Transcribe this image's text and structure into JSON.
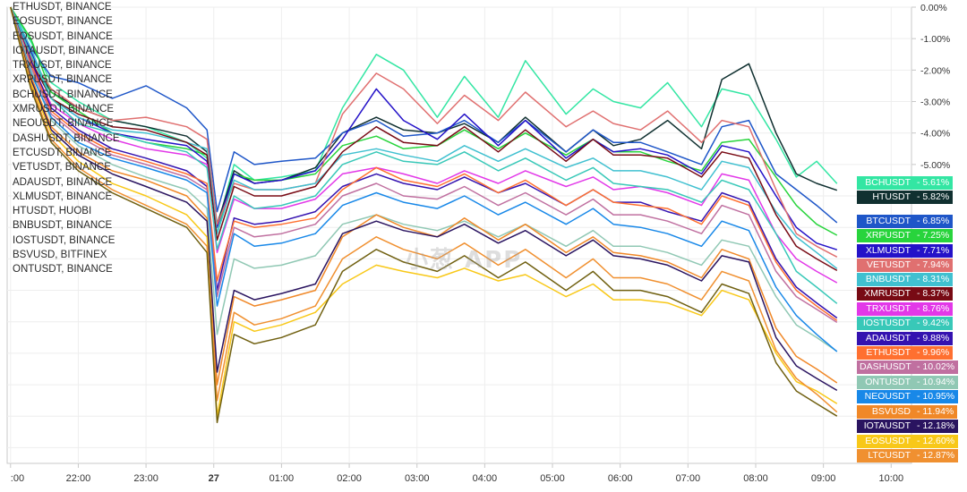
{
  "watermark": "小葱 APP",
  "colors": {
    "grid": "#eeeeee",
    "axis": "#c8c8c8",
    "text": "#333333"
  },
  "legend": [
    "ETHUSDT, BINANCE",
    "EOSUSDT, BINANCE",
    "EOSUSDT, BINANCE",
    "IOTAUSDT, BINANCE",
    "TRXUSDT, BINANCE",
    "XRPUSDT, BINANCE",
    "BCHUSDT, BINANCE",
    "XMRUSDT, BINANCE",
    "NEOUSDT, BINANCE",
    "DASHUSDT, BINANCE",
    "ETCUSDT, BINANCE",
    "VETUSDT, BINANCE",
    "ADAUSDT, BINANCE",
    "XLMUSDT, BINANCE",
    "HTUSDT, HUOBI",
    "BNBUSDT, BINANCE",
    "IOSTUSDT, BINANCE",
    "BSVUSD, BITFINEX",
    "ONTUSDT, BINANCE"
  ],
  "chart_data": {
    "type": "line",
    "x_ticks": [
      ":00",
      "22:00",
      "23:00",
      "27",
      "01:00",
      "02:00",
      "03:00",
      "04:00",
      "05:00",
      "06:00",
      "07:00",
      "08:00",
      "09:00",
      "10:00"
    ],
    "y_ticks": [
      "0.00%",
      "-1.00%",
      "-2.00%",
      "-3.00%",
      "-4.00%",
      "-5.00%"
    ],
    "ylim": [
      -14.5,
      0
    ],
    "xlim": [
      -0.05,
      13.3
    ],
    "anchor_x": [
      0,
      0.3,
      0.6,
      1.0,
      1.5,
      2.0,
      2.6,
      2.9,
      3.05,
      3.3,
      3.6,
      4.0,
      4.5,
      4.9,
      5.4,
      5.8,
      6.3,
      6.7,
      7.2,
      7.6,
      8.2,
      8.6,
      8.9,
      9.3,
      9.7,
      10.2,
      10.5,
      10.9,
      11.3,
      11.6,
      11.9,
      12.2
    ],
    "series": [
      {
        "name": "BCHUSDT",
        "color": "#33e6a3",
        "final": "-5.61%",
        "values": [
          0.0,
          -1.1,
          -2.4,
          -3.0,
          -3.6,
          -3.8,
          -4.3,
          -4.8,
          -7.0,
          -5.0,
          -5.5,
          -5.4,
          -5.2,
          -3.2,
          -1.5,
          -2.0,
          -3.5,
          -2.2,
          -3.5,
          -1.7,
          -3.4,
          -2.6,
          -3.0,
          -3.2,
          -2.4,
          -3.8,
          -2.6,
          -2.8,
          -4.2,
          -5.4,
          -4.9,
          -5.61
        ]
      },
      {
        "name": "HTUSDT",
        "color": "#103030",
        "final": "-5.82%",
        "values": [
          0.0,
          -1.6,
          -2.7,
          -3.2,
          -3.6,
          -3.8,
          -4.1,
          -4.6,
          -6.9,
          -5.2,
          -5.6,
          -5.5,
          -5.1,
          -4.0,
          -3.5,
          -3.9,
          -4.0,
          -3.7,
          -4.3,
          -3.5,
          -4.6,
          -3.9,
          -4.4,
          -4.2,
          -3.6,
          -4.5,
          -2.3,
          -1.8,
          -4.0,
          -5.3,
          -5.6,
          -5.82
        ]
      },
      {
        "name": "BTCUSDT",
        "color": "#1e56c8",
        "final": "-6.85%",
        "values": [
          0.0,
          -1.3,
          -2.2,
          -2.4,
          -2.9,
          -2.5,
          -3.2,
          -3.9,
          -6.5,
          -4.6,
          -5.0,
          -4.9,
          -4.8,
          -4.0,
          -3.6,
          -4.1,
          -4.0,
          -3.6,
          -4.3,
          -3.6,
          -4.6,
          -3.9,
          -4.3,
          -4.3,
          -4.6,
          -5.0,
          -3.8,
          -3.6,
          -5.3,
          -5.8,
          -6.3,
          -6.85
        ]
      },
      {
        "name": "XRPUSDT",
        "color": "#28d43c",
        "final": "-7.25%",
        "values": [
          0.0,
          -1.0,
          -2.7,
          -3.3,
          -4.0,
          -4.3,
          -4.5,
          -4.7,
          -7.2,
          -5.3,
          -5.5,
          -5.5,
          -5.3,
          -4.4,
          -4.1,
          -4.5,
          -4.4,
          -3.9,
          -4.5,
          -4.0,
          -4.7,
          -4.2,
          -4.6,
          -4.6,
          -4.9,
          -5.2,
          -4.3,
          -4.2,
          -5.4,
          -6.3,
          -6.9,
          -7.25
        ]
      },
      {
        "name": "XLMUSDT",
        "color": "#2412c8",
        "final": "-7.71%",
        "values": [
          0.0,
          -1.4,
          -2.9,
          -3.5,
          -4.0,
          -4.2,
          -4.4,
          -4.9,
          -7.0,
          -5.3,
          -5.6,
          -5.5,
          -5.2,
          -4.2,
          -2.6,
          -3.6,
          -4.2,
          -3.4,
          -4.4,
          -3.6,
          -4.8,
          -4.2,
          -4.6,
          -4.5,
          -4.7,
          -5.3,
          -4.4,
          -4.6,
          -6.0,
          -7.0,
          -7.5,
          -7.71
        ]
      },
      {
        "name": "VETUSDT",
        "color": "#e07070",
        "final": "-7.94%",
        "values": [
          0.0,
          -1.6,
          -2.6,
          -3.2,
          -3.6,
          -3.5,
          -3.8,
          -4.2,
          -6.9,
          -5.6,
          -5.8,
          -5.8,
          -5.6,
          -3.4,
          -2.1,
          -2.6,
          -3.7,
          -2.8,
          -3.6,
          -2.7,
          -3.8,
          -3.3,
          -3.7,
          -3.9,
          -3.3,
          -4.3,
          -3.6,
          -3.8,
          -5.8,
          -7.2,
          -7.6,
          -7.94
        ]
      },
      {
        "name": "BNBUSDT",
        "color": "#40c0d0",
        "final": "-8.31%",
        "values": [
          0.0,
          -1.3,
          -2.9,
          -3.5,
          -3.9,
          -4.0,
          -4.3,
          -4.5,
          -7.2,
          -5.5,
          -5.8,
          -5.8,
          -5.6,
          -4.7,
          -4.5,
          -4.7,
          -4.9,
          -4.4,
          -4.9,
          -4.5,
          -5.1,
          -4.8,
          -5.2,
          -5.2,
          -5.4,
          -5.8,
          -4.9,
          -5.1,
          -6.5,
          -7.3,
          -7.8,
          -8.31
        ]
      },
      {
        "name": "XMRUSDT",
        "color": "#780a14",
        "final": "-8.37%",
        "values": [
          0.0,
          -1.7,
          -2.9,
          -3.4,
          -3.8,
          -3.9,
          -4.3,
          -4.7,
          -7.4,
          -5.7,
          -6.0,
          -6.0,
          -5.7,
          -4.6,
          -3.8,
          -4.3,
          -4.4,
          -3.8,
          -4.6,
          -3.9,
          -4.9,
          -4.2,
          -4.7,
          -4.7,
          -4.8,
          -5.4,
          -4.6,
          -4.8,
          -6.6,
          -7.6,
          -8.0,
          -8.37
        ]
      },
      {
        "name": "TRXUSDT",
        "color": "#e238e8",
        "final": "-8.76%",
        "values": [
          0.0,
          -1.8,
          -3.1,
          -3.7,
          -4.2,
          -4.5,
          -4.7,
          -5.0,
          -7.8,
          -6.1,
          -6.4,
          -6.4,
          -6.1,
          -5.3,
          -5.1,
          -5.3,
          -5.6,
          -5.2,
          -5.6,
          -5.2,
          -5.7,
          -5.4,
          -5.8,
          -5.7,
          -5.9,
          -6.3,
          -5.3,
          -5.5,
          -7.2,
          -8.0,
          -8.4,
          -8.76
        ]
      },
      {
        "name": "IOSTUSDT",
        "color": "#38c8b8",
        "final": "-9.42%",
        "values": [
          0.0,
          -1.5,
          -2.9,
          -3.7,
          -4.0,
          -4.3,
          -4.6,
          -5.1,
          -7.7,
          -6.0,
          -6.4,
          -6.3,
          -6.0,
          -5.0,
          -4.6,
          -4.9,
          -5.0,
          -4.6,
          -5.2,
          -4.8,
          -5.5,
          -5.1,
          -5.6,
          -5.7,
          -5.8,
          -6.2,
          -5.5,
          -5.8,
          -7.2,
          -8.4,
          -8.9,
          -9.42
        ]
      },
      {
        "name": "ADAUSDT",
        "color": "#3412b0",
        "final": "-9.88%",
        "values": [
          0.0,
          -1.7,
          -3.2,
          -3.9,
          -4.5,
          -4.8,
          -5.2,
          -5.7,
          -9.0,
          -6.7,
          -6.9,
          -6.8,
          -6.5,
          -5.7,
          -5.3,
          -5.6,
          -5.8,
          -5.4,
          -5.9,
          -5.6,
          -6.3,
          -5.8,
          -6.2,
          -6.2,
          -6.5,
          -6.8,
          -5.9,
          -6.2,
          -8.0,
          -8.9,
          -9.4,
          -9.88
        ]
      },
      {
        "name": "ETHUSDT",
        "color": "#ff7030",
        "final": "-9.96%",
        "values": [
          0.0,
          -1.8,
          -3.3,
          -4.0,
          -4.6,
          -4.9,
          -5.3,
          -5.6,
          -8.7,
          -6.8,
          -7.0,
          -6.9,
          -6.7,
          -5.8,
          -5.1,
          -5.5,
          -5.7,
          -5.3,
          -5.9,
          -5.5,
          -6.3,
          -5.8,
          -6.2,
          -6.3,
          -6.4,
          -6.9,
          -6.0,
          -6.3,
          -8.1,
          -9.0,
          -9.5,
          -9.96
        ]
      },
      {
        "name": "DASHUSDT",
        "color": "#c070a0",
        "final": "-10.02%",
        "values": [
          0.0,
          -1.9,
          -3.4,
          -4.1,
          -4.7,
          -5.0,
          -5.4,
          -5.8,
          -9.2,
          -7.0,
          -7.3,
          -7.2,
          -6.9,
          -6.0,
          -5.6,
          -6.0,
          -6.1,
          -5.7,
          -6.3,
          -5.9,
          -6.6,
          -6.1,
          -6.6,
          -6.6,
          -6.8,
          -7.2,
          -6.3,
          -6.6,
          -8.4,
          -9.2,
          -9.6,
          -10.02
        ]
      },
      {
        "name": "ONTUSDT",
        "color": "#90c8b4",
        "final": "-10.94%",
        "values": [
          0.0,
          -2.0,
          -3.6,
          -4.4,
          -5.0,
          -5.4,
          -5.8,
          -6.4,
          -10.4,
          -8.0,
          -8.3,
          -8.2,
          -7.9,
          -6.9,
          -6.6,
          -6.9,
          -7.1,
          -6.8,
          -7.3,
          -6.9,
          -7.6,
          -7.1,
          -7.6,
          -7.6,
          -7.8,
          -8.2,
          -7.4,
          -7.6,
          -9.2,
          -10.1,
          -10.5,
          -10.94
        ]
      },
      {
        "name": "NEOUSDT",
        "color": "#1888e8",
        "final": "-10.95%",
        "values": [
          0.0,
          -2.1,
          -3.5,
          -4.3,
          -4.8,
          -5.1,
          -5.5,
          -5.9,
          -9.5,
          -7.2,
          -7.6,
          -7.5,
          -7.2,
          -6.3,
          -5.9,
          -6.2,
          -6.4,
          -6.0,
          -6.6,
          -6.2,
          -6.9,
          -6.4,
          -6.9,
          -7.0,
          -7.2,
          -7.6,
          -6.8,
          -7.1,
          -8.9,
          -9.8,
          -10.4,
          -10.95
        ]
      },
      {
        "name": "BSVUSD",
        "color": "#f08828",
        "final": "-11.94%",
        "values": [
          0.0,
          -2.2,
          -3.8,
          -4.6,
          -5.2,
          -5.5,
          -6.0,
          -6.7,
          -12.0,
          -9.2,
          -9.5,
          -9.3,
          -9.0,
          -7.3,
          -6.6,
          -7.0,
          -7.3,
          -6.7,
          -7.4,
          -6.9,
          -7.8,
          -7.3,
          -7.8,
          -7.9,
          -8.1,
          -8.6,
          -7.7,
          -8.0,
          -10.2,
          -11.1,
          -11.5,
          -11.94
        ]
      },
      {
        "name": "IOTAUSDT",
        "color": "#2a1460",
        "final": "-12.18%",
        "values": [
          0.0,
          -2.3,
          -3.9,
          -4.7,
          -5.3,
          -5.7,
          -6.2,
          -6.8,
          -11.6,
          -9.0,
          -9.3,
          -9.1,
          -8.8,
          -7.2,
          -6.8,
          -7.1,
          -7.3,
          -6.9,
          -7.5,
          -7.1,
          -7.9,
          -7.4,
          -7.9,
          -8.0,
          -8.2,
          -8.7,
          -7.9,
          -8.1,
          -10.5,
          -11.4,
          -11.8,
          -12.18
        ]
      },
      {
        "name": "EOSUSDT",
        "color": "#f8c818",
        "final": "-12.60%",
        "values": [
          0.0,
          -2.4,
          -4.0,
          -4.9,
          -5.6,
          -6.0,
          -6.6,
          -7.3,
          -13.0,
          -10.0,
          -10.3,
          -10.1,
          -9.7,
          -8.8,
          -8.2,
          -8.4,
          -8.6,
          -8.3,
          -8.7,
          -8.5,
          -9.2,
          -8.8,
          -9.3,
          -9.3,
          -9.4,
          -9.8,
          -9.0,
          -9.3,
          -11.0,
          -11.9,
          -12.2,
          -12.6
        ]
      },
      {
        "name": "LTCUSDT",
        "color": "#f09030",
        "final": "-12.87%",
        "values": [
          0.0,
          -2.5,
          -4.2,
          -5.1,
          -5.8,
          -6.3,
          -6.9,
          -7.6,
          -12.5,
          -9.7,
          -10.1,
          -9.9,
          -9.5,
          -8.0,
          -7.3,
          -7.7,
          -8.0,
          -7.5,
          -8.2,
          -7.7,
          -8.6,
          -8.0,
          -8.6,
          -8.6,
          -8.8,
          -9.3,
          -8.4,
          -8.7,
          -10.9,
          -11.8,
          -12.3,
          -12.87
        ]
      },
      {
        "name": "ETCUSDT",
        "color": "#706010",
        "values": [
          0.0,
          -2.6,
          -4.3,
          -5.2,
          -5.9,
          -6.4,
          -7.0,
          -7.8,
          -13.2,
          -10.4,
          -10.7,
          -10.5,
          -10.1,
          -8.4,
          -7.7,
          -8.1,
          -8.4,
          -7.9,
          -8.6,
          -8.1,
          -9.0,
          -8.4,
          -9.0,
          -9.0,
          -9.2,
          -9.7,
          -8.8,
          -9.1,
          -11.3,
          -12.2,
          -12.6,
          -13.0
        ]
      }
    ]
  }
}
